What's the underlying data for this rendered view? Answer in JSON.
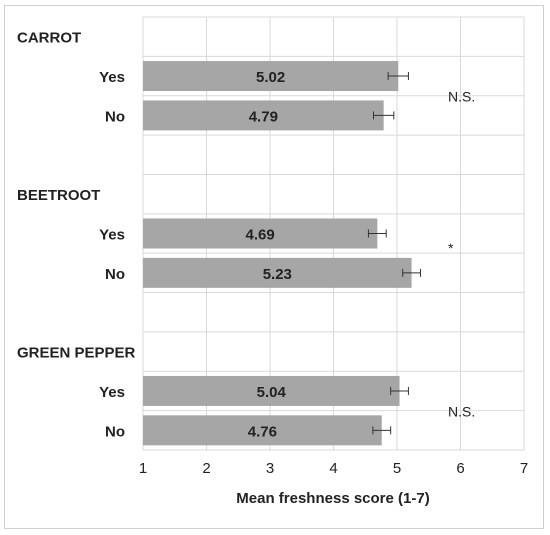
{
  "chart_data": {
    "type": "bar",
    "orientation": "horizontal",
    "xlabel": "Mean freshness score (1-7)",
    "xlim": [
      1,
      7
    ],
    "xticks": [
      1,
      2,
      3,
      4,
      5,
      6,
      7
    ],
    "grid": "vertical",
    "bar_color": "#a6a6a6",
    "groups": [
      {
        "name": "CARROT",
        "significance": "N.S.",
        "bars": [
          {
            "label": "Yes",
            "value": 5.02,
            "value_label": "5.02",
            "error": 0.16
          },
          {
            "label": "No",
            "value": 4.79,
            "value_label": "4.79",
            "error": 0.16
          }
        ]
      },
      {
        "name": "BEETROOT",
        "significance": "*",
        "bars": [
          {
            "label": "Yes",
            "value": 4.69,
            "value_label": "4.69",
            "error": 0.14
          },
          {
            "label": "No",
            "value": 5.23,
            "value_label": "5.23",
            "error": 0.14
          }
        ]
      },
      {
        "name": "GREEN PEPPER",
        "significance": "N.S.",
        "bars": [
          {
            "label": "Yes",
            "value": 5.04,
            "value_label": "5.04",
            "error": 0.14
          },
          {
            "label": "No",
            "value": 4.76,
            "value_label": "4.76",
            "error": 0.14
          }
        ]
      }
    ]
  }
}
